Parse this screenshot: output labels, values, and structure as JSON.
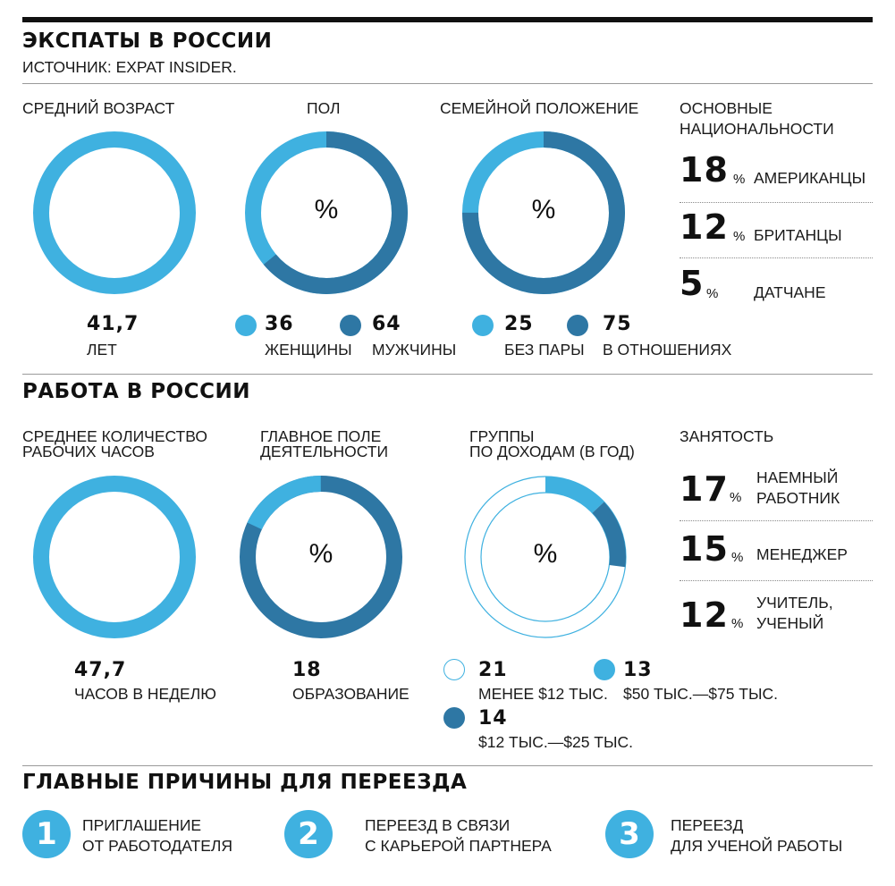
{
  "colors": {
    "light": "#3fb1e0",
    "dark": "#2e77a4",
    "outline": "#3fb1e0"
  },
  "section1": {
    "title": "ЭКСПАТЫ В РОССИИ",
    "source": "ИСТОЧНИК: EXPAT INSIDER.",
    "age": {
      "caption": "СРЕДНИЙ ВОЗРАСТ",
      "value": "41,7",
      "unit": "ЛЕТ"
    },
    "gender": {
      "caption": "ПОЛ",
      "center": "%"
    },
    "marital": {
      "caption": "СЕМЕЙНОЙ ПОЛОЖЕНИЕ",
      "center": "%"
    },
    "nationalities": {
      "caption_line1": "ОСНОВНЫЕ",
      "caption_line2": "НАЦИОНАЛЬНОСТИ",
      "items": [
        {
          "value": "18",
          "pct": "%",
          "label": "АМЕРИКАНЦЫ"
        },
        {
          "value": "12",
          "pct": "%",
          "label": "БРИТАНЦЫ"
        },
        {
          "value": "5",
          "pct": "%",
          "label": "ДАТЧАНЕ"
        }
      ]
    }
  },
  "section2": {
    "title": "РАБОТА В РОССИИ",
    "hours": {
      "caption_line1": "СРЕДНЕЕ КОЛИЧЕСТВО",
      "caption_line2": "РАБОЧИХ ЧАСОВ",
      "value": "47,7",
      "unit": "ЧАСОВ В НЕДЕЛЮ"
    },
    "field": {
      "caption_line1": "ГЛАВНОЕ ПОЛЕ",
      "caption_line2": "ДЕЯТЕЛЬНОСТИ",
      "center": "%"
    },
    "income": {
      "caption_line1": "ГРУППЫ",
      "caption_line2": "ПО ДОХОДАМ (В ГОД)",
      "center": "%"
    },
    "employment": {
      "caption": "ЗАНЯТОСТЬ",
      "items": [
        {
          "value": "17",
          "pct": "%",
          "label_line1": "НАЕМНЫЙ",
          "label_line2": "РАБОТНИК"
        },
        {
          "value": "15",
          "pct": "%",
          "label_line1": "МЕНЕДЖЕР",
          "label_line2": ""
        },
        {
          "value": "12",
          "pct": "%",
          "label_line1": "УЧИТЕЛЬ,",
          "label_line2": "УЧЕНЫЙ"
        }
      ]
    }
  },
  "section3": {
    "title": "ГЛАВНЫЕ ПРИЧИНЫ ДЛЯ ПЕРЕЕЗДА",
    "reasons": [
      {
        "num": "1",
        "line1": "ПРИГЛАШЕНИЕ",
        "line2": "ОТ РАБОТОДАТЕЛЯ"
      },
      {
        "num": "2",
        "line1": "ПЕРЕЕЗД В СВЯЗИ",
        "line2": "С КАРЬЕРОЙ ПАРТНЕРА"
      },
      {
        "num": "3",
        "line1": "ПЕРЕЕЗД",
        "line2": "ДЛЯ УЧЕНОЙ РАБОТЫ"
      }
    ]
  },
  "chart_data": [
    {
      "type": "pie",
      "categories": [
        "ЖЕНЩИНЫ",
        "МУЖЧИНЫ"
      ],
      "values": [
        36,
        64
      ],
      "value_labels": [
        "36",
        "64"
      ]
    },
    {
      "type": "pie",
      "categories": [
        "БЕЗ ПАРЫ",
        "В ОТНОШЕНИЯХ"
      ],
      "values": [
        25,
        75
      ],
      "value_labels": [
        "25",
        "75"
      ]
    },
    {
      "type": "pie",
      "categories": [
        "ОБРАЗОВАНИЕ"
      ],
      "values": [
        18
      ],
      "value_labels": [
        "18"
      ]
    },
    {
      "type": "pie",
      "categories": [
        "МЕНЕЕ $12 ТЫС.",
        "$50 ТЫС.—$75 ТЫС.",
        "$12 ТЫС.—$25 ТЫС."
      ],
      "values": [
        21,
        13,
        14
      ],
      "value_labels": [
        "21",
        "13",
        "14"
      ]
    }
  ]
}
